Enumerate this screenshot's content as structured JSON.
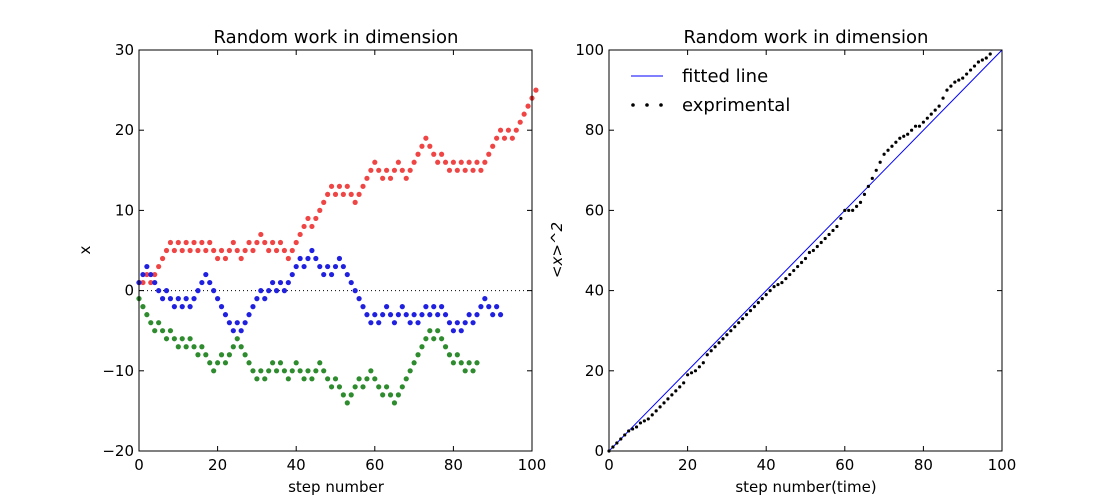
{
  "chart_data": [
    {
      "type": "scatter",
      "title": "Random work in dimension",
      "xlabel": "step number",
      "ylabel": "x",
      "xlim": [
        0,
        100
      ],
      "ylim": [
        -20,
        30
      ],
      "xticks": [
        0,
        20,
        40,
        60,
        80,
        100
      ],
      "yticks": [
        -20,
        -10,
        0,
        10,
        20,
        30
      ],
      "hline": {
        "y": 0,
        "style": "dotted"
      },
      "series": [
        {
          "color": "#f04545",
          "values": [
            1,
            1,
            2,
            1,
            2,
            3,
            4,
            5,
            6,
            5,
            6,
            5,
            6,
            5,
            6,
            5,
            6,
            5,
            6,
            5,
            4,
            5,
            4,
            5,
            6,
            5,
            4,
            5,
            6,
            5,
            6,
            7,
            6,
            5,
            6,
            5,
            6,
            5,
            4,
            5,
            6,
            7,
            8,
            9,
            8,
            9,
            10,
            11,
            12,
            13,
            12,
            13,
            12,
            13,
            12,
            11,
            12,
            13,
            14,
            15,
            16,
            15,
            14,
            15,
            14,
            15,
            16,
            15,
            14,
            15,
            16,
            17,
            18,
            19,
            18,
            17,
            16,
            17,
            16,
            15,
            16,
            15,
            16,
            15,
            16,
            15,
            16,
            15,
            16,
            17,
            18,
            19,
            20,
            19,
            20,
            19,
            20,
            21,
            22,
            23,
            24,
            25
          ]
        },
        {
          "color": "#2020e0",
          "values": [
            1,
            2,
            3,
            2,
            1,
            0,
            -1,
            0,
            -1,
            -2,
            -1,
            -2,
            -1,
            -2,
            -1,
            0,
            1,
            2,
            1,
            0,
            -1,
            -2,
            -3,
            -4,
            -5,
            -4,
            -5,
            -4,
            -3,
            -2,
            -1,
            0,
            -1,
            0,
            1,
            0,
            1,
            0,
            1,
            2,
            3,
            4,
            3,
            4,
            5,
            4,
            3,
            2,
            3,
            2,
            3,
            4,
            3,
            2,
            1,
            0,
            -1,
            -2,
            -3,
            -4,
            -3,
            -4,
            -3,
            -2,
            -3,
            -4,
            -3,
            -2,
            -3,
            -4,
            -3,
            -4,
            -3,
            -2,
            -3,
            -2,
            -3,
            -2,
            -3,
            -4,
            -5,
            -4,
            -5,
            -4,
            -3,
            -4,
            -3,
            -2,
            -1,
            -2,
            -3,
            -2,
            -3
          ]
        },
        {
          "color": "#2e8b2e",
          "values": [
            -1,
            -2,
            -3,
            -4,
            -5,
            -4,
            -5,
            -6,
            -5,
            -6,
            -7,
            -6,
            -7,
            -6,
            -7,
            -8,
            -7,
            -8,
            -9,
            -10,
            -9,
            -8,
            -9,
            -8,
            -7,
            -6,
            -7,
            -8,
            -9,
            -10,
            -11,
            -10,
            -11,
            -10,
            -9,
            -10,
            -9,
            -10,
            -11,
            -10,
            -9,
            -10,
            -11,
            -10,
            -11,
            -10,
            -9,
            -10,
            -11,
            -12,
            -11,
            -12,
            -13,
            -14,
            -13,
            -12,
            -11,
            -12,
            -11,
            -10,
            -11,
            -12,
            -13,
            -12,
            -13,
            -14,
            -13,
            -12,
            -11,
            -10,
            -9,
            -8,
            -7,
            -6,
            -5,
            -6,
            -5,
            -6,
            -7,
            -8,
            -9,
            -8,
            -9,
            -10,
            -9,
            -10,
            -9
          ]
        }
      ]
    },
    {
      "type": "line",
      "title": "Random work in dimension",
      "xlabel": "step number(time)",
      "ylabel": "<x>^2",
      "xlim": [
        0,
        100
      ],
      "ylim": [
        0,
        100
      ],
      "xticks": [
        0,
        20,
        40,
        60,
        80,
        100
      ],
      "yticks": [
        0,
        20,
        40,
        60,
        80,
        100
      ],
      "legend_position": "top-left",
      "series": [
        {
          "name": "fitted line",
          "color": "#0000ff",
          "style": "line",
          "x": [
            0,
            100
          ],
          "y": [
            0,
            100
          ]
        },
        {
          "name": "exprimental",
          "color": "#000000",
          "style": "dots",
          "y": [
            0,
            1,
            2,
            3,
            4,
            5,
            5.5,
            6,
            7,
            7.5,
            8,
            9,
            10,
            11,
            12,
            13,
            14,
            15,
            16,
            17,
            19,
            19.5,
            20,
            21,
            22,
            24,
            25,
            26,
            27,
            28,
            29,
            30,
            31,
            32,
            33,
            34,
            35,
            36,
            37,
            38,
            39,
            40,
            41,
            41.5,
            42,
            43,
            44,
            45,
            46,
            47,
            48,
            49.5,
            50,
            51,
            52,
            53,
            54,
            55,
            56,
            58,
            60,
            60,
            60,
            61,
            62,
            64,
            66,
            68,
            70,
            72,
            74,
            75,
            76,
            77,
            78,
            78.5,
            79,
            80,
            81,
            81,
            82,
            83,
            84,
            85,
            86,
            88,
            90,
            91,
            92,
            92.5,
            93,
            94,
            95,
            96,
            97,
            97.5,
            98,
            99
          ]
        }
      ]
    }
  ]
}
